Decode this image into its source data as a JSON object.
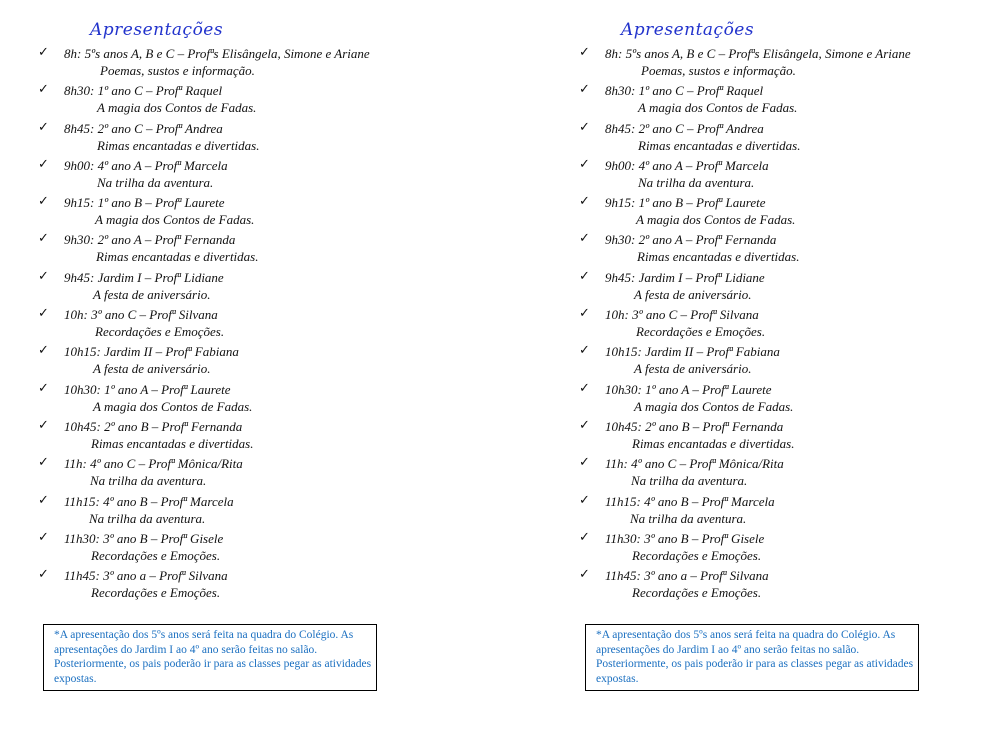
{
  "title": "Apresentações",
  "check_icon": "✓",
  "items": [
    {
      "time_line": "8h: 5ºs anos A, B e C – Profªs Elisângela, Simone e Ariane",
      "subtitle": "Poemas, sustos e informação."
    },
    {
      "time_line": "8h30: 1º ano C – Profª Raquel",
      "subtitle": "A magia dos Contos de Fadas."
    },
    {
      "time_line": "8h45: 2º ano C – Profª Andrea",
      "subtitle": "Rimas encantadas e divertidas."
    },
    {
      "time_line": "9h00:  4º ano A – Profª Marcela",
      "subtitle": "Na trilha da aventura."
    },
    {
      "time_line": "9h15: 1º ano B – Profª Laurete",
      "subtitle": "A magia dos Contos de Fadas."
    },
    {
      "time_line": "9h30: 2º ano A – Profª Fernanda",
      "subtitle": "Rimas encantadas e divertidas."
    },
    {
      "time_line": "9h45: Jardim I – Profª Lidiane",
      "subtitle": "A festa de aniversário."
    },
    {
      "time_line": "10h:  3º ano C – Profª Silvana",
      "subtitle": "Recordações e Emoções."
    },
    {
      "time_line": "10h15: Jardim II – Profª Fabiana",
      "subtitle": "A festa de aniversário."
    },
    {
      "time_line": "10h30: 1º ano A – Profª Laurete",
      "subtitle": "A magia dos Contos de Fadas."
    },
    {
      "time_line": "10h45: 2º ano B – Profª Fernanda",
      "subtitle": "Rimas encantadas e divertidas."
    },
    {
      "time_line": "11h: 4º ano C – Profª Mônica/Rita",
      "subtitle": "Na trilha da aventura."
    },
    {
      "time_line": "11h15: 4º ano B – Profª  Marcela",
      "subtitle": "Na trilha da aventura."
    },
    {
      "time_line": "11h30: 3º ano B – Profª Gisele",
      "subtitle": "Recordações e Emoções."
    },
    {
      "time_line": "11h45: 3º ano a – Profª Silvana",
      "subtitle": "Recordações e Emoções."
    }
  ],
  "note": "*A apresentação dos 5ºs anos será feita na quadra do Colégio. As apresentações do Jardim I ao 4º ano serão feitas no salão. Posteriormente, os pais poderão ir para as classes pegar as atividades expostas."
}
